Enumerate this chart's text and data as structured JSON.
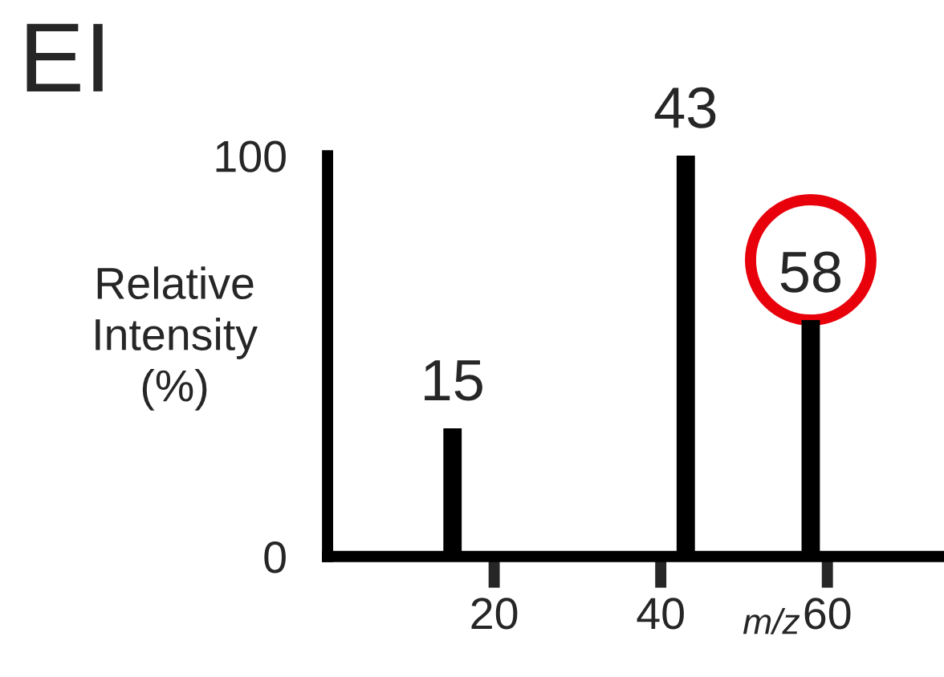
{
  "chart_data": {
    "type": "bar",
    "title": "EI",
    "xlabel": "m/z",
    "ylabel": "Relative\nIntensity\n(%)",
    "x": [
      15,
      43,
      58
    ],
    "values": [
      32,
      100,
      59
    ],
    "color": "#000000",
    "xlim": [
      0,
      74
    ],
    "xticks": [
      20,
      40,
      60
    ],
    "ylim": [
      0,
      100
    ],
    "yticks": [
      0,
      100
    ],
    "annotations": [
      {
        "text": "15",
        "x": 15,
        "y": 32
      },
      {
        "text": "43",
        "x": 43,
        "y": 100
      },
      {
        "text": "58",
        "x": 58,
        "y": 59
      }
    ],
    "grid": false,
    "legend": false
  }
}
